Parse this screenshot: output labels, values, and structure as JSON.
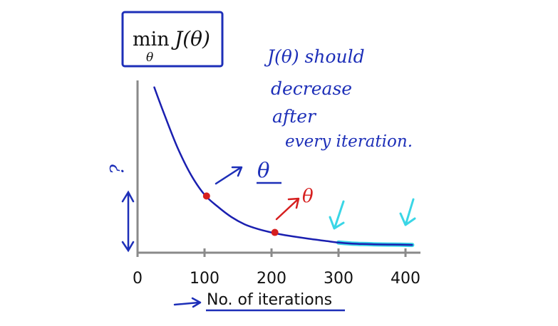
{
  "chart_data": {
    "type": "line",
    "title_formula": {
      "op": "min",
      "subscript": "θ",
      "expr": "J(θ)"
    },
    "xlabel": "No. of iterations",
    "ylabel": "",
    "xlim": [
      0,
      420
    ],
    "ylim": [
      0,
      25
    ],
    "xticks": [
      0,
      100,
      200,
      300,
      400
    ],
    "xtick_labels": [
      "0",
      "100",
      "200",
      "300",
      "400"
    ],
    "series": [
      {
        "x": [
          25,
          40,
          60,
          80,
          100,
          120,
          140,
          160,
          180,
          200,
          220,
          250,
          280,
          300,
          320,
          350,
          380,
          410
        ],
        "y": [
          24.5,
          20.5,
          15.5,
          11.5,
          8.6,
          6.8,
          5.3,
          4.2,
          3.5,
          3.0,
          2.6,
          2.15,
          1.75,
          1.5,
          1.35,
          1.25,
          1.2,
          1.15
        ],
        "color": "#1a1fb0"
      }
    ],
    "highlight_segment": {
      "x_range": [
        290,
        410
      ],
      "color": "#3ad6e6"
    },
    "markers": [
      {
        "x": 103,
        "y": 8.4,
        "color": "#d61f1f"
      },
      {
        "x": 205,
        "y": 3.0,
        "color": "#d61f1f"
      }
    ],
    "annotations": {
      "note_lines": [
        "J(θ) should",
        "decrease",
        "after",
        "every iteration."
      ],
      "theta_blue": "θ",
      "theta_red": "θ",
      "y_axis_mark": "?"
    }
  },
  "colors": {
    "axis": "#8a8a8a",
    "ink_blue": "#1d2fb8",
    "ink_red": "#d61f1f",
    "ink_cyan": "#3ad6e6",
    "box": "#1d2fb8"
  }
}
